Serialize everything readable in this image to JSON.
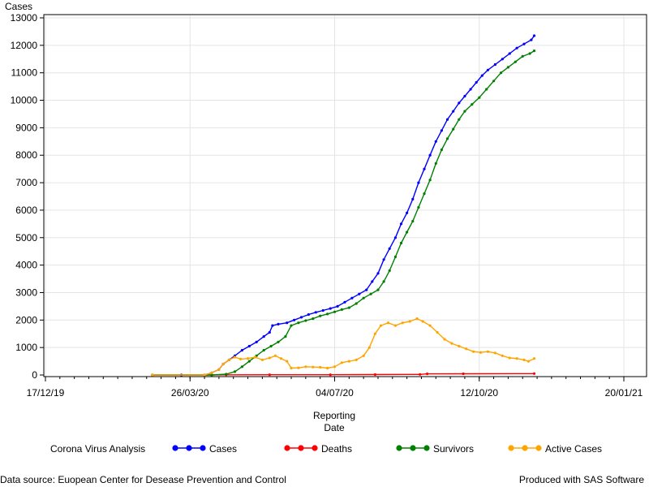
{
  "chart_data": {
    "type": "line",
    "ylabel": "Cases",
    "xlabel_line1": "Reporting",
    "xlabel_line2": "Date",
    "legend_title": "Corona Virus Analysis",
    "legend_position": "bottom",
    "grid": true,
    "ylim": [
      0,
      13000
    ],
    "y_ticks": [
      0,
      1000,
      2000,
      3000,
      4000,
      5000,
      6000,
      7000,
      8000,
      9000,
      10000,
      11000,
      12000,
      13000
    ],
    "x_ticks": [
      "17/12/19",
      "26/03/20",
      "04/07/20",
      "12/10/20",
      "20/01/21"
    ],
    "x_domain_start": "2019-12-17",
    "x_domain_end": "2021-01-20",
    "series": [
      {
        "name": "Cases",
        "color": "#0000ff",
        "points": [
          [
            "2020-02-29",
            0
          ],
          [
            "2020-03-20",
            0
          ],
          [
            "2020-04-05",
            0
          ],
          [
            "2020-04-10",
            80
          ],
          [
            "2020-04-15",
            200
          ],
          [
            "2020-04-18",
            400
          ],
          [
            "2020-04-22",
            550
          ],
          [
            "2020-04-26",
            700
          ],
          [
            "2020-05-01",
            900
          ],
          [
            "2020-05-06",
            1050
          ],
          [
            "2020-05-11",
            1200
          ],
          [
            "2020-05-16",
            1400
          ],
          [
            "2020-05-20",
            1550
          ],
          [
            "2020-05-22",
            1800
          ],
          [
            "2020-05-26",
            1850
          ],
          [
            "2020-06-01",
            1900
          ],
          [
            "2020-06-06",
            2000
          ],
          [
            "2020-06-11",
            2100
          ],
          [
            "2020-06-16",
            2200
          ],
          [
            "2020-06-21",
            2280
          ],
          [
            "2020-06-26",
            2350
          ],
          [
            "2020-07-01",
            2420
          ],
          [
            "2020-07-06",
            2500
          ],
          [
            "2020-07-11",
            2650
          ],
          [
            "2020-07-16",
            2800
          ],
          [
            "2020-07-21",
            2950
          ],
          [
            "2020-07-26",
            3100
          ],
          [
            "2020-07-30",
            3400
          ],
          [
            "2020-08-03",
            3700
          ],
          [
            "2020-08-07",
            4200
          ],
          [
            "2020-08-11",
            4600
          ],
          [
            "2020-08-15",
            5000
          ],
          [
            "2020-08-19",
            5500
          ],
          [
            "2020-08-23",
            5900
          ],
          [
            "2020-08-27",
            6400
          ],
          [
            "2020-08-31",
            7000
          ],
          [
            "2020-09-04",
            7500
          ],
          [
            "2020-09-08",
            8000
          ],
          [
            "2020-09-12",
            8500
          ],
          [
            "2020-09-16",
            8900
          ],
          [
            "2020-09-20",
            9300
          ],
          [
            "2020-09-24",
            9600
          ],
          [
            "2020-09-28",
            9900
          ],
          [
            "2020-10-02",
            10150
          ],
          [
            "2020-10-06",
            10400
          ],
          [
            "2020-10-10",
            10650
          ],
          [
            "2020-10-14",
            10900
          ],
          [
            "2020-10-18",
            11100
          ],
          [
            "2020-10-23",
            11300
          ],
          [
            "2020-10-28",
            11500
          ],
          [
            "2020-11-02",
            11700
          ],
          [
            "2020-11-07",
            11900
          ],
          [
            "2020-11-12",
            12050
          ],
          [
            "2020-11-17",
            12200
          ],
          [
            "2020-11-19",
            12350
          ]
        ]
      },
      {
        "name": "Deaths",
        "color": "#ff0000",
        "points": [
          [
            "2020-02-29",
            0
          ],
          [
            "2020-04-10",
            0
          ],
          [
            "2020-04-20",
            5
          ],
          [
            "2020-05-20",
            10
          ],
          [
            "2020-07-01",
            10
          ],
          [
            "2020-08-01",
            15
          ],
          [
            "2020-09-01",
            20
          ],
          [
            "2020-09-06",
            40
          ],
          [
            "2020-10-01",
            45
          ],
          [
            "2020-11-19",
            50
          ]
        ]
      },
      {
        "name": "Survivors",
        "color": "#008000",
        "points": [
          [
            "2020-02-29",
            0
          ],
          [
            "2020-04-10",
            0
          ],
          [
            "2020-04-20",
            30
          ],
          [
            "2020-04-26",
            120
          ],
          [
            "2020-05-01",
            300
          ],
          [
            "2020-05-06",
            500
          ],
          [
            "2020-05-11",
            700
          ],
          [
            "2020-05-16",
            900
          ],
          [
            "2020-05-21",
            1050
          ],
          [
            "2020-05-26",
            1200
          ],
          [
            "2020-05-31",
            1400
          ],
          [
            "2020-06-04",
            1800
          ],
          [
            "2020-06-09",
            1900
          ],
          [
            "2020-06-14",
            1980
          ],
          [
            "2020-06-19",
            2050
          ],
          [
            "2020-06-24",
            2150
          ],
          [
            "2020-06-29",
            2220
          ],
          [
            "2020-07-04",
            2300
          ],
          [
            "2020-07-09",
            2380
          ],
          [
            "2020-07-14",
            2450
          ],
          [
            "2020-07-19",
            2600
          ],
          [
            "2020-07-24",
            2800
          ],
          [
            "2020-07-29",
            2950
          ],
          [
            "2020-08-03",
            3100
          ],
          [
            "2020-08-07",
            3400
          ],
          [
            "2020-08-11",
            3800
          ],
          [
            "2020-08-15",
            4300
          ],
          [
            "2020-08-19",
            4800
          ],
          [
            "2020-08-23",
            5200
          ],
          [
            "2020-08-27",
            5600
          ],
          [
            "2020-08-31",
            6100
          ],
          [
            "2020-09-04",
            6600
          ],
          [
            "2020-09-08",
            7100
          ],
          [
            "2020-09-12",
            7700
          ],
          [
            "2020-09-16",
            8200
          ],
          [
            "2020-09-20",
            8600
          ],
          [
            "2020-09-24",
            8950
          ],
          [
            "2020-09-28",
            9300
          ],
          [
            "2020-10-02",
            9600
          ],
          [
            "2020-10-07",
            9850
          ],
          [
            "2020-10-12",
            10100
          ],
          [
            "2020-10-17",
            10400
          ],
          [
            "2020-10-22",
            10700
          ],
          [
            "2020-10-27",
            11000
          ],
          [
            "2020-11-01",
            11200
          ],
          [
            "2020-11-06",
            11400
          ],
          [
            "2020-11-11",
            11600
          ],
          [
            "2020-11-16",
            11700
          ],
          [
            "2020-11-19",
            11800
          ]
        ]
      },
      {
        "name": "Active Cases",
        "color": "#ffa500",
        "points": [
          [
            "2020-02-29",
            0
          ],
          [
            "2020-04-05",
            0
          ],
          [
            "2020-04-10",
            80
          ],
          [
            "2020-04-15",
            200
          ],
          [
            "2020-04-18",
            400
          ],
          [
            "2020-04-22",
            550
          ],
          [
            "2020-04-26",
            650
          ],
          [
            "2020-04-30",
            580
          ],
          [
            "2020-05-05",
            600
          ],
          [
            "2020-05-10",
            650
          ],
          [
            "2020-05-15",
            550
          ],
          [
            "2020-05-20",
            620
          ],
          [
            "2020-05-24",
            700
          ],
          [
            "2020-05-28",
            600
          ],
          [
            "2020-06-01",
            500
          ],
          [
            "2020-06-04",
            250
          ],
          [
            "2020-06-09",
            260
          ],
          [
            "2020-06-14",
            300
          ],
          [
            "2020-06-19",
            290
          ],
          [
            "2020-06-24",
            280
          ],
          [
            "2020-06-29",
            250
          ],
          [
            "2020-07-04",
            300
          ],
          [
            "2020-07-09",
            450
          ],
          [
            "2020-07-14",
            500
          ],
          [
            "2020-07-19",
            550
          ],
          [
            "2020-07-24",
            700
          ],
          [
            "2020-07-28",
            1000
          ],
          [
            "2020-08-01",
            1500
          ],
          [
            "2020-08-05",
            1800
          ],
          [
            "2020-08-10",
            1900
          ],
          [
            "2020-08-15",
            1800
          ],
          [
            "2020-08-20",
            1900
          ],
          [
            "2020-08-25",
            1950
          ],
          [
            "2020-08-30",
            2050
          ],
          [
            "2020-09-03",
            1950
          ],
          [
            "2020-09-08",
            1800
          ],
          [
            "2020-09-13",
            1550
          ],
          [
            "2020-09-18",
            1300
          ],
          [
            "2020-09-23",
            1150
          ],
          [
            "2020-09-28",
            1050
          ],
          [
            "2020-10-03",
            950
          ],
          [
            "2020-10-08",
            850
          ],
          [
            "2020-10-13",
            820
          ],
          [
            "2020-10-18",
            850
          ],
          [
            "2020-10-23",
            800
          ],
          [
            "2020-10-28",
            700
          ],
          [
            "2020-11-02",
            620
          ],
          [
            "2020-11-07",
            600
          ],
          [
            "2020-11-12",
            550
          ],
          [
            "2020-11-15",
            500
          ],
          [
            "2020-11-19",
            600
          ]
        ]
      }
    ]
  },
  "footer": {
    "source": "Data source: Euopean Center for Desease Prevention and Control",
    "credit": "Produced with SAS Software"
  }
}
